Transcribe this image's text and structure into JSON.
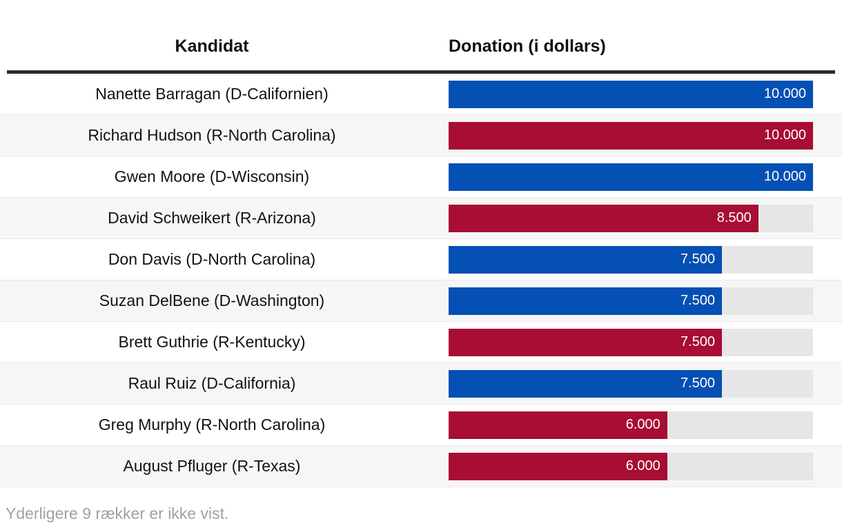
{
  "table": {
    "columns": {
      "candidate": "Kandidat",
      "donation": "Donation (i dollars)"
    },
    "max_value": 10000,
    "rows": [
      {
        "candidate": "Nanette Barragan (D-Californien)",
        "party": "D",
        "value": 10000,
        "label": "10.000"
      },
      {
        "candidate": "Richard Hudson (R-North Carolina)",
        "party": "R",
        "value": 10000,
        "label": "10.000"
      },
      {
        "candidate": "Gwen Moore (D-Wisconsin)",
        "party": "D",
        "value": 10000,
        "label": "10.000"
      },
      {
        "candidate": "David Schweikert (R-Arizona)",
        "party": "R",
        "value": 8500,
        "label": "8.500"
      },
      {
        "candidate": "Don Davis (D-North Carolina)",
        "party": "D",
        "value": 7500,
        "label": "7.500"
      },
      {
        "candidate": "Suzan DelBene (D-Washington)",
        "party": "D",
        "value": 7500,
        "label": "7.500"
      },
      {
        "candidate": "Brett Guthrie (R-Kentucky)",
        "party": "R",
        "value": 7500,
        "label": "7.500"
      },
      {
        "candidate": "Raul Ruiz (D-California)",
        "party": "D",
        "value": 7500,
        "label": "7.500"
      },
      {
        "candidate": "Greg Murphy (R-North Carolina)",
        "party": "R",
        "value": 6000,
        "label": "6.000"
      },
      {
        "candidate": "August Pfluger (R-Texas)",
        "party": "R",
        "value": 6000,
        "label": "6.000"
      }
    ],
    "footer": "Yderligere 9 rækker er ikke vist."
  },
  "colors": {
    "democrat": "#0550b4",
    "republican": "#a80d33",
    "track": "#e6e6e6",
    "stripe": "#f6f6f6",
    "header_rule": "#2b2b2b"
  },
  "chart_data": {
    "type": "bar",
    "orientation": "horizontal",
    "title": "",
    "xlabel": "Donation (i dollars)",
    "ylabel": "Kandidat",
    "xlim": [
      0,
      10000
    ],
    "grid": false,
    "legend": "none",
    "categories": [
      "Nanette Barragan (D-Californien)",
      "Richard Hudson (R-North Carolina)",
      "Gwen Moore (D-Wisconsin)",
      "David Schweikert (R-Arizona)",
      "Don Davis (D-North Carolina)",
      "Suzan DelBene (D-Washington)",
      "Brett Guthrie (R-Kentucky)",
      "Raul Ruiz (D-California)",
      "Greg Murphy (R-North Carolina)",
      "August Pfluger (R-Texas)"
    ],
    "values": [
      10000,
      10000,
      10000,
      8500,
      7500,
      7500,
      7500,
      7500,
      6000,
      6000
    ],
    "value_labels": [
      "10.000",
      "10.000",
      "10.000",
      "8.500",
      "7.500",
      "7.500",
      "7.500",
      "7.500",
      "6.000",
      "6.000"
    ],
    "parties": [
      "D",
      "R",
      "D",
      "R",
      "D",
      "D",
      "R",
      "D",
      "R",
      "R"
    ],
    "bar_colors_by_party": {
      "D": "#0550b4",
      "R": "#a80d33"
    },
    "annotations": [
      "Yderligere 9 rækker er ikke vist."
    ]
  }
}
